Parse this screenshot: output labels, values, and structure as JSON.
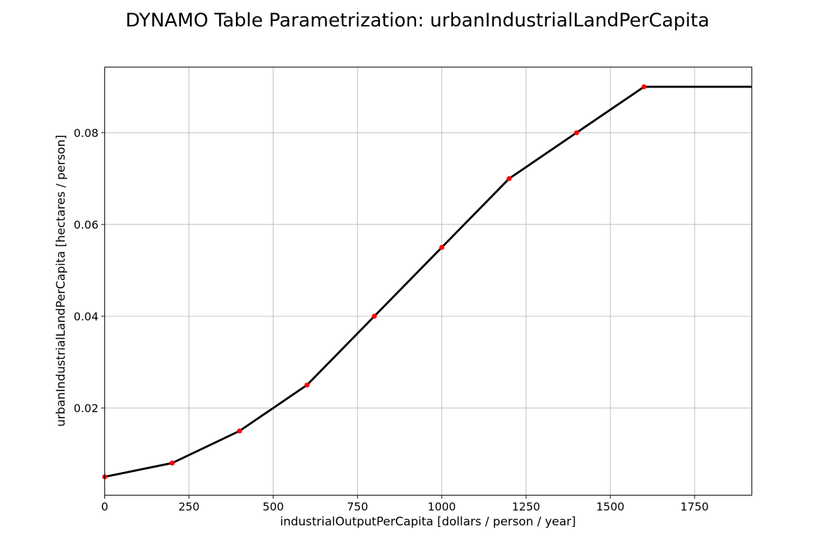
{
  "chart_data": {
    "type": "line",
    "title": "DYNAMO Table Parametrization: urbanIndustrialLandPerCapita",
    "xlabel": "industrialOutputPerCapita [dollars / person / year]",
    "ylabel": "urbanIndustrialLandPerCapita [hectares / person]",
    "xlim": [
      0,
      1920
    ],
    "ylim": [
      0.001,
      0.0943
    ],
    "x_ticks": [
      0,
      250,
      500,
      750,
      1000,
      1250,
      1500,
      1750
    ],
    "y_ticks": [
      0.02,
      0.04,
      0.06,
      0.08
    ],
    "x_tick_labels": [
      "0",
      "250",
      "500",
      "750",
      "1000",
      "1250",
      "1500",
      "1750"
    ],
    "y_tick_labels": [
      "0.02",
      "0.04",
      "0.06",
      "0.08"
    ],
    "grid": true,
    "series": [
      {
        "style": "line",
        "color": "#000000",
        "x": [
          0,
          200,
          400,
          600,
          800,
          1000,
          1200,
          1400,
          1600,
          1920
        ],
        "y": [
          0.005,
          0.008,
          0.015,
          0.025,
          0.04,
          0.055,
          0.07,
          0.08,
          0.09,
          0.09
        ]
      },
      {
        "style": "points",
        "color": "#ff0000",
        "x": [
          0,
          200,
          400,
          600,
          800,
          1000,
          1200,
          1400,
          1600
        ],
        "y": [
          0.005,
          0.008,
          0.015,
          0.025,
          0.04,
          0.055,
          0.07,
          0.08,
          0.09
        ]
      }
    ]
  }
}
